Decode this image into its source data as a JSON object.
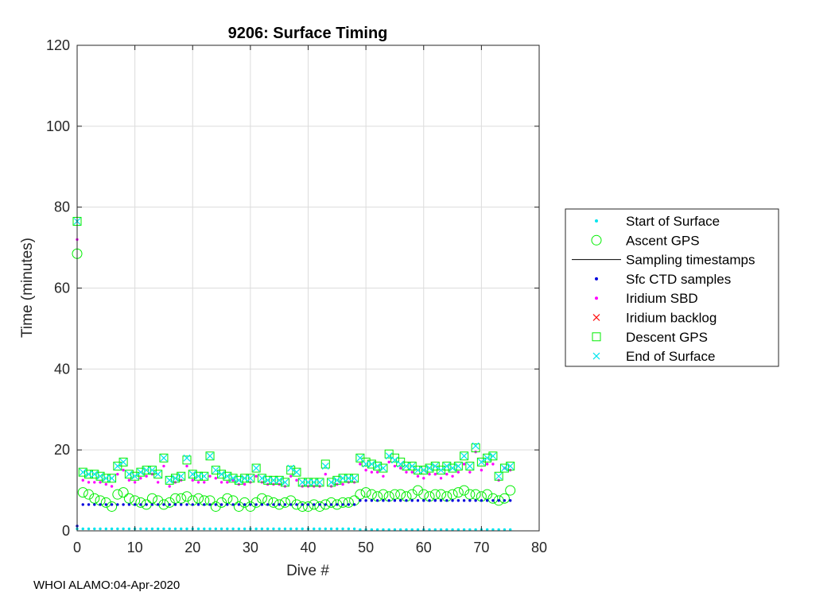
{
  "chart_data": {
    "type": "scatter",
    "title": "9206: Surface Timing",
    "xlabel": "Dive #",
    "ylabel": "Time (minutes)",
    "xlim": [
      0,
      80
    ],
    "ylim": [
      0,
      120
    ],
    "xticks": [
      "0",
      "10",
      "20",
      "30",
      "40",
      "50",
      "60",
      "70",
      "80"
    ],
    "yticks": [
      "0",
      "20",
      "40",
      "60",
      "80",
      "100",
      "120"
    ],
    "grid": true,
    "legend_position": "outside-right",
    "dives": [
      0,
      1,
      2,
      3,
      4,
      5,
      6,
      7,
      8,
      9,
      10,
      11,
      12,
      13,
      14,
      15,
      16,
      17,
      18,
      19,
      20,
      21,
      22,
      23,
      24,
      25,
      26,
      27,
      28,
      29,
      30,
      31,
      32,
      33,
      34,
      35,
      36,
      37,
      38,
      39,
      40,
      41,
      42,
      43,
      44,
      45,
      46,
      47,
      48,
      49,
      50,
      51,
      52,
      53,
      54,
      55,
      56,
      57,
      58,
      59,
      60,
      61,
      62,
      63,
      64,
      65,
      66,
      67,
      68,
      69,
      70,
      71,
      72,
      73,
      74,
      75
    ],
    "series": [
      {
        "name": "Start of Surface",
        "marker": "dot",
        "color": "#00e5ee",
        "values": [
          0.5,
          0.5,
          0.5,
          0.5,
          0.5,
          0.5,
          0.5,
          0.5,
          0.5,
          0.5,
          0.5,
          0.5,
          0.5,
          0.5,
          0.5,
          0.5,
          0.5,
          0.5,
          0.5,
          0.5,
          0.5,
          0.5,
          0.5,
          0.5,
          0.5,
          0.5,
          0.5,
          0.5,
          0.5,
          0.5,
          0.5,
          0.5,
          0.5,
          0.5,
          0.5,
          0.5,
          0.5,
          0.5,
          0.5,
          0.5,
          0.5,
          0.5,
          0.5,
          0.5,
          0.5,
          0.5,
          0.5,
          0.5,
          0.5,
          0.3,
          0.3,
          0.3,
          0.3,
          0.3,
          0.3,
          0.3,
          0.3,
          0.3,
          0.3,
          0.3,
          0.3,
          0.3,
          0.3,
          0.3,
          0.3,
          0.3,
          0.3,
          0.3,
          0.3,
          0.3,
          0.3,
          0.3,
          0.3,
          0.3,
          0.3,
          0.3
        ]
      },
      {
        "name": "Ascent GPS",
        "marker": "circle",
        "color": "#00ee00",
        "values": [
          68.5,
          9.5,
          9.0,
          8.0,
          7.5,
          7.0,
          6.0,
          9.0,
          9.5,
          8.0,
          7.5,
          7.0,
          6.5,
          8.0,
          7.5,
          6.5,
          7.0,
          8.0,
          8.0,
          8.5,
          7.5,
          8.0,
          7.5,
          7.5,
          6.0,
          7.0,
          8.0,
          7.5,
          6.0,
          7.0,
          6.0,
          7.0,
          8.0,
          7.5,
          7.0,
          6.5,
          7.0,
          7.5,
          6.5,
          6.0,
          6.0,
          6.5,
          6.0,
          6.5,
          7.0,
          6.5,
          7.0,
          7.0,
          7.5,
          9.0,
          9.5,
          9.0,
          8.5,
          9.0,
          8.5,
          9.0,
          9.0,
          8.5,
          9.0,
          10.0,
          9.0,
          8.5,
          9.0,
          9.0,
          8.5,
          9.0,
          9.5,
          10.0,
          9.0,
          9.0,
          8.5,
          9.0,
          8.0,
          7.5,
          8.0,
          10.0
        ]
      },
      {
        "name": "Sampling timestamps",
        "marker": "line",
        "color": "#000000",
        "values": []
      },
      {
        "name": "Sfc CTD samples",
        "marker": "dot",
        "color": "#0000dd",
        "values": [
          1.2,
          6.5,
          6.5,
          6.5,
          6.5,
          6.5,
          6.5,
          6.5,
          6.5,
          6.5,
          6.5,
          6.5,
          6.5,
          6.5,
          6.5,
          6.5,
          6.5,
          6.5,
          6.5,
          6.5,
          6.5,
          6.5,
          6.5,
          6.5,
          6.5,
          6.5,
          6.5,
          6.5,
          6.5,
          6.5,
          6.5,
          6.5,
          6.5,
          6.5,
          6.5,
          6.5,
          6.5,
          6.5,
          6.5,
          6.5,
          6.5,
          6.5,
          6.5,
          6.5,
          6.5,
          6.5,
          6.5,
          6.5,
          6.5,
          7.5,
          7.5,
          7.5,
          7.5,
          7.5,
          7.5,
          7.5,
          7.5,
          7.5,
          7.5,
          7.5,
          7.5,
          7.5,
          7.5,
          7.5,
          7.5,
          7.5,
          7.5,
          7.5,
          7.5,
          7.5,
          7.5,
          7.5,
          7.5,
          7.5,
          7.5,
          7.5
        ]
      },
      {
        "name": "Iridium SBD",
        "marker": "dot",
        "color": "#ff00ff",
        "values": [
          72.0,
          12.5,
          12.0,
          12.0,
          12.0,
          11.5,
          11.0,
          14.0,
          15.0,
          12.5,
          12.0,
          13.0,
          13.5,
          14.0,
          12.0,
          16.0,
          11.0,
          12.0,
          12.5,
          16.0,
          12.5,
          12.0,
          12.0,
          13.5,
          13.0,
          12.0,
          12.0,
          12.5,
          11.5,
          11.5,
          12.0,
          13.5,
          12.0,
          11.5,
          11.5,
          11.5,
          11.0,
          13.5,
          12.5,
          11.0,
          11.0,
          11.0,
          11.0,
          14.0,
          11.0,
          11.5,
          11.5,
          12.0,
          12.0,
          16.5,
          15.0,
          14.5,
          14.5,
          13.5,
          17.0,
          16.0,
          15.5,
          14.5,
          14.5,
          13.5,
          13.0,
          14.0,
          14.0,
          13.0,
          14.0,
          13.5,
          14.5,
          16.5,
          14.5,
          19.5,
          15.0,
          16.5,
          16.5,
          12.5,
          15.5,
          15.0
        ]
      },
      {
        "name": "Iridium backlog",
        "marker": "x",
        "color": "#ff0000",
        "values": []
      },
      {
        "name": "Descent GPS",
        "marker": "square",
        "color": "#00ee00",
        "values": [
          76.5,
          14.5,
          14.0,
          14.0,
          13.5,
          13.0,
          13.0,
          16.0,
          17.0,
          14.0,
          13.5,
          14.5,
          15.0,
          15.0,
          14.0,
          18.0,
          12.5,
          13.0,
          13.5,
          17.5,
          14.0,
          13.5,
          13.5,
          18.5,
          15.0,
          14.0,
          13.5,
          13.0,
          12.5,
          13.0,
          13.0,
          15.5,
          13.0,
          12.5,
          12.5,
          12.5,
          12.0,
          15.0,
          14.5,
          12.0,
          12.0,
          12.0,
          12.0,
          16.5,
          12.0,
          12.5,
          13.0,
          13.0,
          13.0,
          18.0,
          17.0,
          16.5,
          16.0,
          15.5,
          19.0,
          18.0,
          17.0,
          16.0,
          16.0,
          15.0,
          15.0,
          15.5,
          16.0,
          15.0,
          16.0,
          15.5,
          16.0,
          18.5,
          16.0,
          20.5,
          17.0,
          18.0,
          18.5,
          13.5,
          15.5,
          16.0
        ]
      },
      {
        "name": "End of Surface",
        "marker": "x",
        "color": "#00e5ee",
        "values": [
          76.5,
          14.5,
          14.0,
          14.0,
          13.5,
          13.0,
          13.0,
          16.0,
          17.0,
          14.0,
          13.5,
          14.5,
          15.0,
          15.0,
          14.0,
          18.0,
          12.5,
          13.0,
          13.5,
          18.0,
          14.0,
          13.5,
          13.5,
          18.5,
          15.0,
          14.0,
          13.5,
          13.0,
          12.5,
          13.0,
          13.0,
          15.5,
          13.0,
          12.5,
          12.5,
          12.5,
          12.0,
          15.5,
          14.5,
          12.0,
          12.0,
          12.0,
          12.0,
          16.0,
          12.0,
          12.5,
          13.0,
          13.0,
          13.0,
          18.0,
          16.5,
          16.5,
          16.0,
          15.5,
          18.5,
          17.5,
          16.5,
          16.0,
          16.0,
          15.0,
          15.0,
          15.5,
          16.0,
          15.0,
          16.0,
          15.5,
          16.0,
          18.5,
          16.0,
          21.0,
          17.0,
          18.0,
          18.5,
          13.5,
          15.5,
          16.0
        ]
      }
    ]
  },
  "footer": "WHOI ALAMO:04-Apr-2020"
}
